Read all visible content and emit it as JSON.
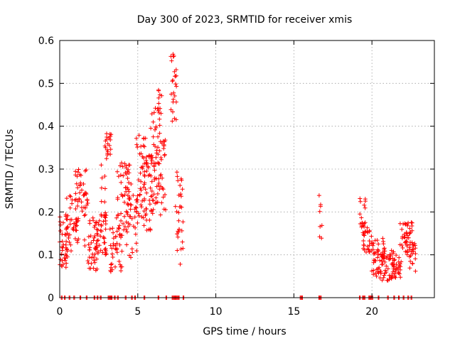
{
  "chart_data": {
    "type": "scatter",
    "title": "Day 300 of 2023, SRMTID for receiver xmis",
    "xlabel": "GPS time / hours",
    "ylabel": "SRMTID / TECUs",
    "xlim": [
      0,
      24
    ],
    "ylim": [
      0,
      0.6
    ],
    "xticks": [
      0,
      5,
      10,
      15,
      20
    ],
    "xtick_labels": [
      "0",
      "5",
      "10",
      "15",
      "20"
    ],
    "yticks": [
      0,
      0.1,
      0.2,
      0.3,
      0.4,
      0.5,
      0.6
    ],
    "ytick_labels": [
      "0",
      "0.1",
      "0.2",
      "0.3",
      "0.4",
      "0.5",
      "0.6"
    ],
    "grid": true,
    "marker": "+",
    "color": "#ff0000",
    "clusters": [
      {
        "x": [
          0.0,
          0.5
        ],
        "y": [
          0.07,
          0.2
        ],
        "n": 40
      },
      {
        "x": [
          0.4,
          1.2
        ],
        "y": [
          0.09,
          0.24
        ],
        "n": 40
      },
      {
        "x": [
          1.0,
          1.8
        ],
        "y": [
          0.12,
          0.3
        ],
        "n": 45
      },
      {
        "x": [
          1.8,
          2.4
        ],
        "y": [
          0.06,
          0.19
        ],
        "n": 40
      },
      {
        "x": [
          2.3,
          3.0
        ],
        "y": [
          0.1,
          0.18
        ],
        "n": 35
      },
      {
        "x": [
          2.6,
          3.0
        ],
        "y": [
          0.18,
          0.31
        ],
        "n": 15
      },
      {
        "x": [
          2.9,
          3.3
        ],
        "y": [
          0.32,
          0.39
        ],
        "n": 20
      },
      {
        "x": [
          3.2,
          4.0
        ],
        "y": [
          0.06,
          0.17
        ],
        "n": 40
      },
      {
        "x": [
          3.6,
          4.5
        ],
        "y": [
          0.15,
          0.32
        ],
        "n": 45
      },
      {
        "x": [
          4.2,
          5.0
        ],
        "y": [
          0.08,
          0.3
        ],
        "n": 40
      },
      {
        "x": [
          4.9,
          5.6
        ],
        "y": [
          0.18,
          0.38
        ],
        "n": 50
      },
      {
        "x": [
          5.4,
          6.0
        ],
        "y": [
          0.15,
          0.34
        ],
        "n": 40
      },
      {
        "x": [
          5.8,
          6.6
        ],
        "y": [
          0.22,
          0.45
        ],
        "n": 45
      },
      {
        "x": [
          6.2,
          6.8
        ],
        "y": [
          0.19,
          0.37
        ],
        "n": 30
      },
      {
        "x": [
          6.3,
          6.6
        ],
        "y": [
          0.44,
          0.5
        ],
        "n": 8
      },
      {
        "x": [
          7.1,
          7.5
        ],
        "y": [
          0.41,
          0.57
        ],
        "n": 25
      },
      {
        "x": [
          7.4,
          7.9
        ],
        "y": [
          0.07,
          0.3
        ],
        "n": 30
      },
      {
        "x": [
          16.6,
          16.8
        ],
        "y": [
          0.12,
          0.24
        ],
        "n": 8
      },
      {
        "x": [
          19.2,
          19.6
        ],
        "y": [
          0.14,
          0.24
        ],
        "n": 20
      },
      {
        "x": [
          19.4,
          20.0
        ],
        "y": [
          0.1,
          0.17
        ],
        "n": 25
      },
      {
        "x": [
          19.9,
          20.8
        ],
        "y": [
          0.05,
          0.14
        ],
        "n": 45
      },
      {
        "x": [
          20.5,
          21.5
        ],
        "y": [
          0.04,
          0.11
        ],
        "n": 45
      },
      {
        "x": [
          21.2,
          21.9
        ],
        "y": [
          0.04,
          0.1
        ],
        "n": 30
      },
      {
        "x": [
          21.8,
          22.6
        ],
        "y": [
          0.1,
          0.18
        ],
        "n": 40
      },
      {
        "x": [
          22.4,
          22.8
        ],
        "y": [
          0.06,
          0.13
        ],
        "n": 25
      }
    ],
    "zero_points_x": [
      0.1,
      0.3,
      0.6,
      0.9,
      1.3,
      1.7,
      2.2,
      2.4,
      2.6,
      3.1,
      3.2,
      3.3,
      3.5,
      3.7,
      4.2,
      4.6,
      4.8,
      5.4,
      6.3,
      6.8,
      7.2,
      7.3,
      7.4,
      7.5,
      7.6,
      7.9,
      15.4,
      15.5,
      16.6,
      16.7,
      19.2,
      19.4,
      19.5,
      19.8,
      19.9,
      20.0,
      20.4,
      21.0,
      21.4,
      21.7,
      22.0,
      22.3,
      22.5
    ]
  }
}
